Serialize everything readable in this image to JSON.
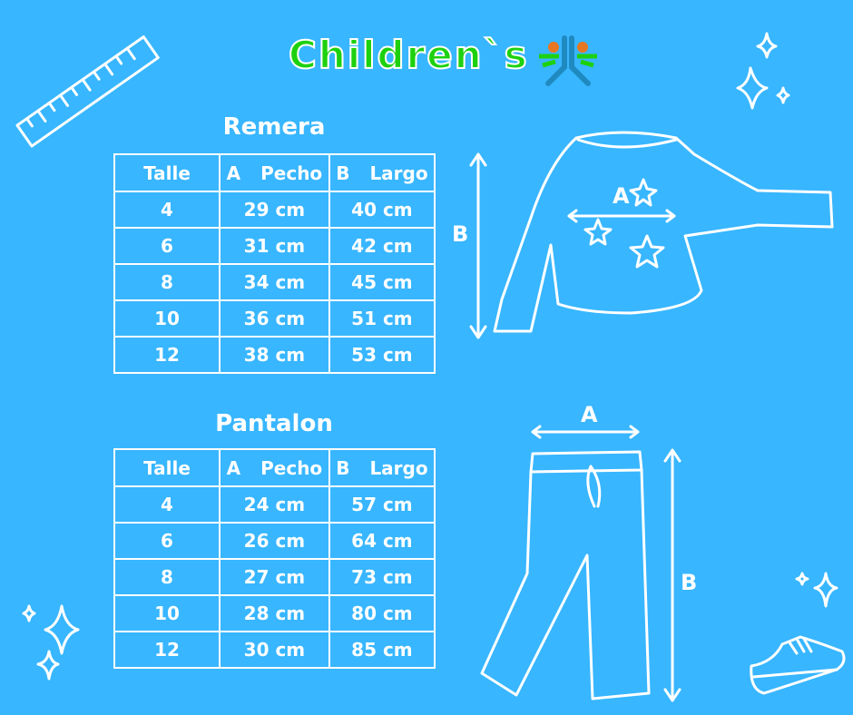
{
  "logo": {
    "text": "Children`s",
    "colors": {
      "text": "#1ed10f",
      "mark_blue": "#1f8ac0",
      "mark_orange": "#e87722",
      "mark_green": "#1ed10f"
    }
  },
  "background": "#38b6ff",
  "remera": {
    "title": "Remera",
    "headers": [
      {
        "letter": "",
        "label": "Talle"
      },
      {
        "letter": "A",
        "label": "Pecho"
      },
      {
        "letter": "B",
        "label": "Largo"
      }
    ],
    "rows": [
      [
        "4",
        "29 cm",
        "40 cm"
      ],
      [
        "6",
        "31 cm",
        "42 cm"
      ],
      [
        "8",
        "34 cm",
        "45 cm"
      ],
      [
        "10",
        "36 cm",
        "51 cm"
      ],
      [
        "12",
        "38 cm",
        "53 cm"
      ]
    ],
    "label_a": "A",
    "label_b": "B"
  },
  "pantalon": {
    "title": "Pantalon",
    "headers": [
      {
        "letter": "",
        "label": "Talle"
      },
      {
        "letter": "A",
        "label": "Pecho"
      },
      {
        "letter": "B",
        "label": "Largo"
      }
    ],
    "rows": [
      [
        "4",
        "24 cm",
        "57 cm"
      ],
      [
        "6",
        "26 cm",
        "64 cm"
      ],
      [
        "8",
        "27 cm",
        "73 cm"
      ],
      [
        "10",
        "28 cm",
        "80 cm"
      ],
      [
        "12",
        "30 cm",
        "85 cm"
      ]
    ],
    "label_a": "A",
    "label_b": "B"
  }
}
